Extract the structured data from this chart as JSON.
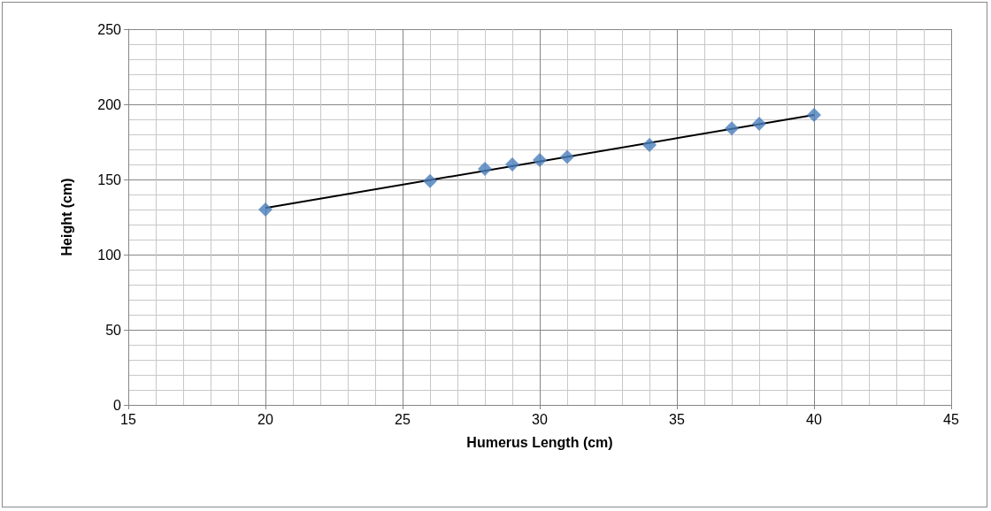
{
  "chart_data": {
    "type": "scatter",
    "xlabel": "Humerus Length (cm)",
    "ylabel": "Height (cm)",
    "xlim": [
      15,
      45
    ],
    "xticks": [
      15,
      20,
      25,
      30,
      35,
      40,
      45
    ],
    "ylim": [
      0,
      250
    ],
    "yticks": [
      0,
      50,
      100,
      150,
      200,
      250
    ],
    "grid": true,
    "marker": "diamond",
    "series": [
      {
        "color": "#4a7ebb",
        "x": [
          20,
          26,
          28,
          29,
          30,
          31,
          34,
          37,
          38,
          40
        ],
        "values": [
          130,
          149,
          157,
          160,
          163,
          165,
          173,
          184,
          187,
          193
        ]
      },
      {
        "type": "line",
        "color": "#000000",
        "x": [
          20,
          40
        ],
        "values": [
          131,
          193
        ],
        "marker": "none",
        "line_style": "solid"
      }
    ]
  }
}
